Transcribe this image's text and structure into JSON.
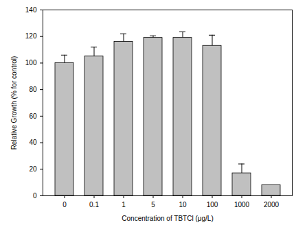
{
  "chart_data": {
    "type": "bar",
    "x_label": "Concentration of TBTCl (μg/L)",
    "y_label": "Relative Growth (% for control)",
    "categories": [
      "0",
      "0.1",
      "1",
      "5",
      "10",
      "100",
      "1000",
      "2000"
    ],
    "values": [
      100,
      105,
      116,
      119,
      119,
      113,
      17,
      8
    ],
    "errors": [
      6,
      7,
      6,
      1.5,
      4.5,
      8,
      7,
      0
    ],
    "color": "#c0c0c0",
    "ylim": [
      0,
      140
    ],
    "yticks": [
      0,
      20,
      40,
      60,
      80,
      100,
      120,
      140
    ],
    "grid": false
  }
}
